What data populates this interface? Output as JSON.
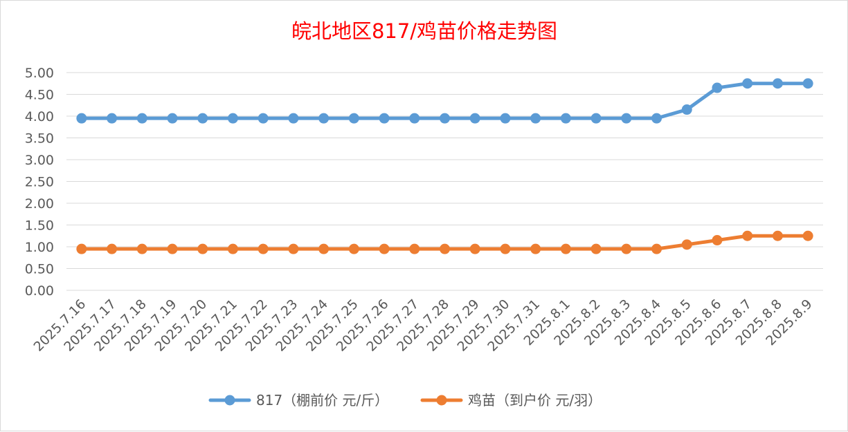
{
  "chart_data": {
    "type": "line",
    "title": "皖北地区817/鸡苗价格走势图",
    "xlabel": "",
    "ylabel": "",
    "ylim": [
      0,
      5
    ],
    "y_ticks": [
      "0.00",
      "0.50",
      "1.00",
      "1.50",
      "2.00",
      "2.50",
      "3.00",
      "3.50",
      "4.00",
      "4.50",
      "5.00"
    ],
    "grid": true,
    "legend_position": "bottom",
    "categories": [
      "2025.7.16",
      "2025.7.17",
      "2025.7.18",
      "2025.7.19",
      "2025.7.20",
      "2025.7.21",
      "2025.7.22",
      "2025.7.23",
      "2025.7.24",
      "2025.7.25",
      "2025.7.26",
      "2025.7.27",
      "2025.7.28",
      "2025.7.29",
      "2025.7.30",
      "2025.7.31",
      "2025.8.1",
      "2025.8.2",
      "2025.8.3",
      "2025.8.4",
      "2025.8.5",
      "2025.8.6",
      "2025.8.7",
      "2025.8.8",
      "2025.8.9"
    ],
    "series": [
      {
        "name": "817（棚前价 元/斤）",
        "color": "#5b9bd5",
        "values": [
          3.95,
          3.95,
          3.95,
          3.95,
          3.95,
          3.95,
          3.95,
          3.95,
          3.95,
          3.95,
          3.95,
          3.95,
          3.95,
          3.95,
          3.95,
          3.95,
          3.95,
          3.95,
          3.95,
          3.95,
          4.15,
          4.65,
          4.75,
          4.75,
          4.75
        ]
      },
      {
        "name": "鸡苗（到户价 元/羽）",
        "color": "#ed7d31",
        "values": [
          0.95,
          0.95,
          0.95,
          0.95,
          0.95,
          0.95,
          0.95,
          0.95,
          0.95,
          0.95,
          0.95,
          0.95,
          0.95,
          0.95,
          0.95,
          0.95,
          0.95,
          0.95,
          0.95,
          0.95,
          1.05,
          1.15,
          1.25,
          1.25,
          1.25
        ]
      }
    ]
  }
}
